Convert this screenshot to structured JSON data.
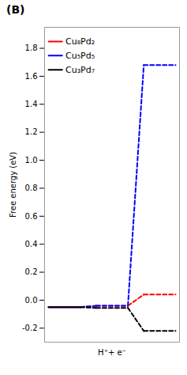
{
  "chart_data": {
    "type": "line",
    "title": "(B)",
    "y_label": "Free energy (eV)",
    "xlim": [
      -0.1,
      3.3
    ],
    "xticks": [
      {
        "value": 0.4,
        "label": null
      },
      {
        "value": 1.6,
        "label": "H⁺+ e⁻"
      },
      {
        "value": 2.8,
        "label": null
      }
    ],
    "ylim": [
      -0.3,
      1.95
    ],
    "yticks": [
      -0.2,
      {
        "value": 0.0,
        "label": "0.0"
      },
      0.2,
      0.4,
      0.6,
      0.8,
      {
        "value": 1.0,
        "label": "1.0"
      },
      1.2,
      1.4,
      1.6,
      1.8
    ],
    "legend": "upper left",
    "series": [
      {
        "name": "Cu₈Pd₂",
        "color": "red",
        "x": [
          [
            0.0,
            0.8
          ],
          [
            1.2,
            2.0
          ],
          [
            2.4,
            3.2
          ]
        ],
        "values": [
          -0.05,
          -0.04,
          0.04
        ],
        "line_style": [
          "solid",
          "dashed",
          "dashed"
        ]
      },
      {
        "name": "Cu₅Pd₅",
        "color": "blue",
        "x": [
          [
            0.0,
            0.8
          ],
          [
            1.2,
            2.0
          ],
          [
            2.4,
            3.2
          ]
        ],
        "values": [
          -0.05,
          -0.04,
          1.68
        ],
        "line_style": [
          "solid",
          "dashed",
          "dashed"
        ]
      },
      {
        "name": "Cu₃Pd₇",
        "color": "black",
        "x": [
          [
            0.0,
            0.8
          ],
          [
            1.2,
            2.0
          ],
          [
            2.4,
            3.2
          ]
        ],
        "values": [
          -0.05,
          -0.055,
          -0.22
        ],
        "line_style": [
          "solid",
          "dashed",
          "dashed"
        ]
      }
    ]
  }
}
